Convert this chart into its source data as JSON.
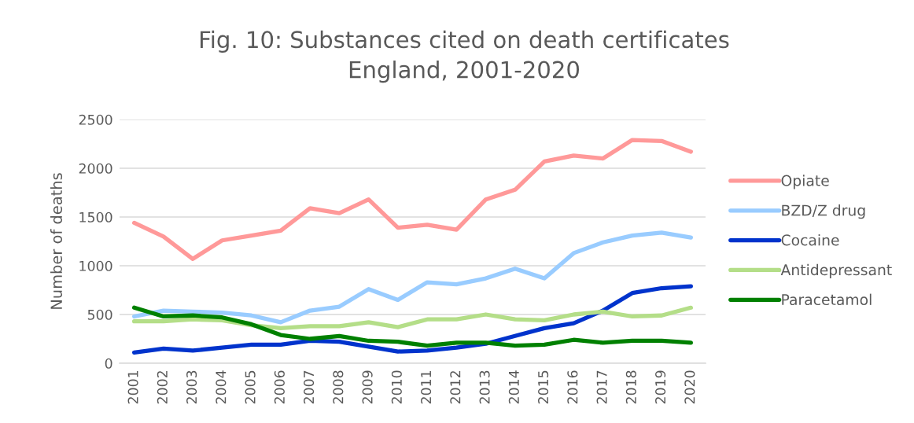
{
  "chart_data": {
    "type": "line",
    "title": "Fig. 10: Substances cited on death certificates\nEngland, 2001-2020",
    "ylabel": "Number of deaths",
    "categories": [
      "2001",
      "2002",
      "2003",
      "2004",
      "2005",
      "2006",
      "2007",
      "2008",
      "2009",
      "2010",
      "2011",
      "2012",
      "2013",
      "2014",
      "2015",
      "2016",
      "2017",
      "2018",
      "2019",
      "2020"
    ],
    "series": [
      {
        "name": "Opiate",
        "color": "#ff9999",
        "values": [
          1440,
          1300,
          1070,
          1260,
          1310,
          1360,
          1590,
          1540,
          1680,
          1390,
          1420,
          1370,
          1680,
          1780,
          2070,
          2130,
          2100,
          2290,
          2280,
          2170
        ]
      },
      {
        "name": "BZD/Z drug",
        "color": "#99ccff",
        "values": [
          480,
          540,
          530,
          520,
          490,
          420,
          540,
          580,
          760,
          650,
          830,
          810,
          870,
          970,
          870,
          1130,
          1240,
          1310,
          1340,
          1290
        ]
      },
      {
        "name": "Cocaine",
        "color": "#0033cc",
        "values": [
          110,
          150,
          130,
          160,
          190,
          190,
          230,
          220,
          170,
          120,
          130,
          160,
          200,
          280,
          360,
          410,
          540,
          720,
          770,
          790
        ]
      },
      {
        "name": "Antidepressant",
        "color": "#b4de88",
        "values": [
          430,
          430,
          450,
          440,
          390,
          360,
          380,
          380,
          420,
          370,
          450,
          450,
          500,
          450,
          440,
          500,
          530,
          480,
          490,
          570
        ]
      },
      {
        "name": "Paracetamol",
        "color": "#008000",
        "values": [
          570,
          480,
          490,
          470,
          400,
          290,
          250,
          280,
          230,
          220,
          180,
          210,
          210,
          180,
          190,
          240,
          210,
          230,
          230,
          210
        ]
      }
    ],
    "ylim": [
      0,
      2500
    ],
    "yticks": [
      0,
      500,
      1000,
      1500,
      2000,
      2500
    ],
    "grid": "y",
    "legend": "right",
    "line_style": "solid"
  }
}
